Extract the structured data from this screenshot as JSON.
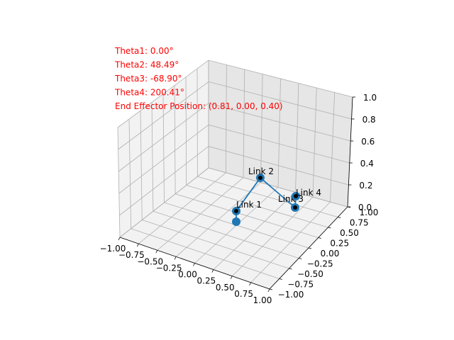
{
  "chart_data": {
    "type": "3d-line",
    "title": "",
    "xlabel": "",
    "ylabel": "",
    "zlabel": "",
    "xlim": [
      -1.0,
      1.0
    ],
    "ylim": [
      -1.0,
      1.0
    ],
    "zlim": [
      0.0,
      1.0
    ],
    "grid": true,
    "x_ticks": [
      "−1.00",
      "−0.75",
      "−0.50",
      "−0.25",
      "0.00",
      "0.25",
      "0.50",
      "0.75",
      "1.00"
    ],
    "y_ticks": [
      "−1.00",
      "−0.75",
      "−0.50",
      "−0.25",
      "0.00",
      "0.25",
      "0.50",
      "0.75",
      "1.00"
    ],
    "z_ticks": [
      "0.0",
      "0.2",
      "0.4",
      "0.6",
      "0.8",
      "1.0"
    ],
    "annotations": [
      "Theta1: 0.00°",
      "Theta2: 48.49°",
      "Theta3: -68.90°",
      "Theta4: 200.41°",
      "End Effector Position: (0.81, 0.00, 0.40)"
    ],
    "joints": [
      {
        "x": 0.0,
        "y": 0.0,
        "z": 0.0,
        "label": ""
      },
      {
        "x": 0.0,
        "y": 0.0,
        "z": 0.1,
        "label": "Link 1"
      },
      {
        "x": 0.33,
        "y": 0.0,
        "z": 0.4,
        "label": "Link 2"
      },
      {
        "x": 0.8,
        "y": 0.0,
        "z": 0.23,
        "label": "Link 3"
      },
      {
        "x": 0.81,
        "y": 0.0,
        "z": 0.4,
        "label": "Link 4"
      }
    ],
    "colors": {
      "line": "#1f77b4",
      "joint": "#1f77b4",
      "marker": "#000000",
      "annotation": "#ff0000"
    }
  }
}
